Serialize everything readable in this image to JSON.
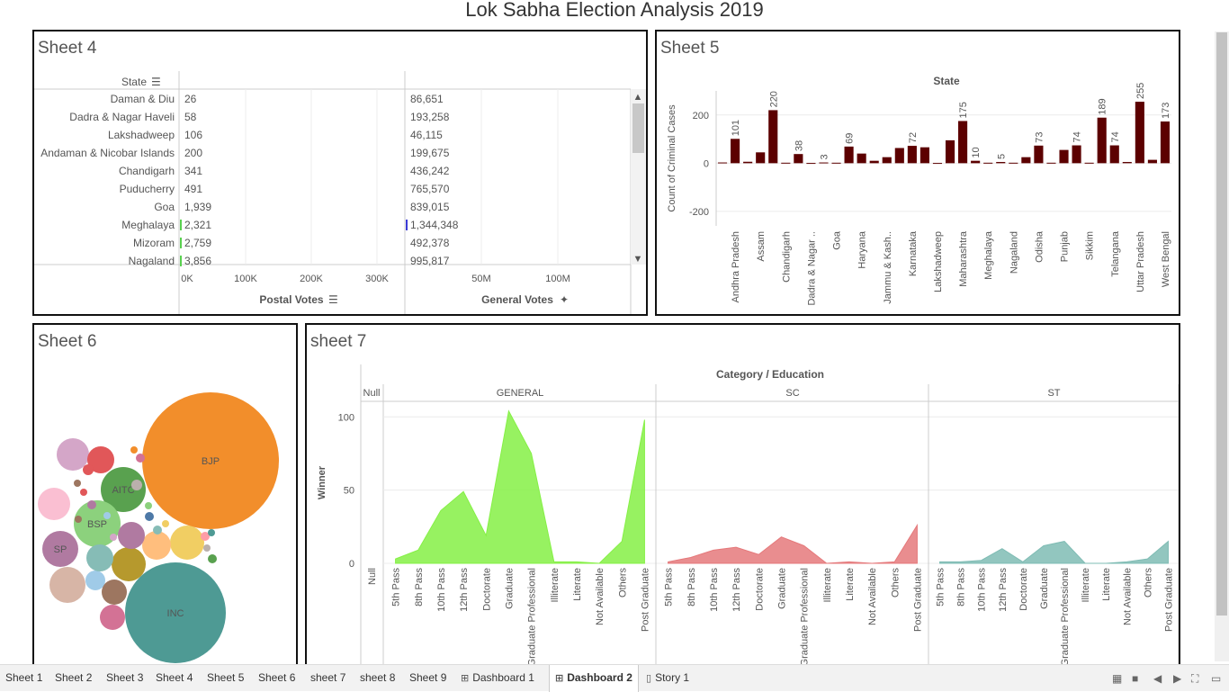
{
  "dashboard": {
    "title": "Lok Sabha Election Analysis 2019"
  },
  "sheet4": {
    "title": "Sheet 4",
    "state_header": "State",
    "postal_label": "Postal Votes",
    "general_label": "General Votes",
    "postal_ticks": [
      "0K",
      "100K",
      "200K",
      "300K"
    ],
    "general_ticks": [
      "50M",
      "100M"
    ],
    "rows": [
      {
        "state": "Daman & Diu",
        "postal": "26",
        "general": "86,651"
      },
      {
        "state": "Dadra & Nagar Haveli",
        "postal": "58",
        "general": "193,258"
      },
      {
        "state": "Lakshadweep",
        "postal": "106",
        "general": "46,115"
      },
      {
        "state": "Andaman & Nicobar Islands",
        "postal": "200",
        "general": "199,675"
      },
      {
        "state": "Chandigarh",
        "postal": "341",
        "general": "436,242"
      },
      {
        "state": "Puducherry",
        "postal": "491",
        "general": "765,570"
      },
      {
        "state": "Goa",
        "postal": "1,939",
        "general": "839,015"
      },
      {
        "state": "Meghalaya",
        "postal": "2,321",
        "general": "1,344,348"
      },
      {
        "state": "Mizoram",
        "postal": "2,759",
        "general": "492,378"
      },
      {
        "state": "Nagaland",
        "postal": "3,856",
        "general": "995,817"
      }
    ]
  },
  "sheet5": {
    "title": "Sheet 5",
    "chart_data": {
      "type": "bar",
      "title": "State",
      "ylabel": "Count of Criminal Cases",
      "ylim": [
        -260,
        300
      ],
      "yticks": [
        "200",
        "0",
        "-200"
      ],
      "bar_color": "#5c0000",
      "values": [
        3,
        101,
        6,
        45,
        220,
        2,
        38,
        1,
        3,
        2,
        69,
        40,
        10,
        25,
        63,
        72,
        66,
        1,
        95,
        175,
        10,
        2,
        5,
        2,
        25,
        73,
        2,
        55,
        74,
        2,
        189,
        74,
        5,
        255,
        14,
        173
      ],
      "bar_labels": [
        {
          "index": 1,
          "label": "101"
        },
        {
          "index": 4,
          "label": "220"
        },
        {
          "index": 6,
          "label": "38"
        },
        {
          "index": 8,
          "label": "3"
        },
        {
          "index": 10,
          "label": "69"
        },
        {
          "index": 15,
          "label": "72"
        },
        {
          "index": 19,
          "label": "175"
        },
        {
          "index": 20,
          "label": "10"
        },
        {
          "index": 22,
          "label": "5"
        },
        {
          "index": 25,
          "label": "73"
        },
        {
          "index": 28,
          "label": "74"
        },
        {
          "index": 30,
          "label": "189"
        },
        {
          "index": 31,
          "label": "74"
        },
        {
          "index": 33,
          "label": "255"
        },
        {
          "index": 35,
          "label": "173"
        }
      ],
      "xtick_labels": [
        {
          "index": 1,
          "label": "Andhra Pradesh"
        },
        {
          "index": 3,
          "label": "Assam"
        },
        {
          "index": 5,
          "label": "Chandigarh"
        },
        {
          "index": 7,
          "label": "Dadra & Nagar .."
        },
        {
          "index": 9,
          "label": "Goa"
        },
        {
          "index": 11,
          "label": "Haryana"
        },
        {
          "index": 13,
          "label": "Jammu & Kash.."
        },
        {
          "index": 15,
          "label": "Karnataka"
        },
        {
          "index": 17,
          "label": "Lakshadweep"
        },
        {
          "index": 19,
          "label": "Maharashtra"
        },
        {
          "index": 21,
          "label": "Meghalaya"
        },
        {
          "index": 23,
          "label": "Nagaland"
        },
        {
          "index": 25,
          "label": "Odisha"
        },
        {
          "index": 27,
          "label": "Punjab"
        },
        {
          "index": 29,
          "label": "Sikkim"
        },
        {
          "index": 31,
          "label": "Telangana"
        },
        {
          "index": 33,
          "label": "Uttar Pradesh"
        },
        {
          "index": 35,
          "label": "West Bengal"
        }
      ]
    }
  },
  "sheet6": {
    "title": "Sheet 6",
    "chart_data": {
      "type": "bubble",
      "bubbles": [
        {
          "label": "BJP",
          "value": 303,
          "color": "#f28e2b"
        },
        {
          "label": "INC",
          "value": 52,
          "color": "#4e9a94"
        },
        {
          "label": "AITC",
          "value": 22,
          "color": "#59a14f"
        },
        {
          "label": "BSP",
          "value": 10,
          "color": "#8cd17d"
        },
        {
          "label": "SP",
          "value": 5,
          "color": "#b07aa1"
        },
        {
          "label": "",
          "value": 24,
          "color": "#d4a6c8"
        },
        {
          "label": "",
          "value": 23,
          "color": "#f1ce63"
        },
        {
          "label": "",
          "value": 22,
          "color": "#d7b5a6"
        },
        {
          "label": "",
          "value": 18,
          "color": "#fabfd2"
        },
        {
          "label": "",
          "value": 16,
          "color": "#b6992d"
        },
        {
          "label": "",
          "value": 12,
          "color": "#a0cbe8"
        },
        {
          "label": "",
          "value": 10,
          "color": "#e15759"
        },
        {
          "label": "",
          "value": 9,
          "color": "#ffbe7d"
        },
        {
          "label": "",
          "value": 8,
          "color": "#9d7660"
        },
        {
          "label": "",
          "value": 7,
          "color": "#86bcb6"
        },
        {
          "label": "",
          "value": 6,
          "color": "#b07aa1"
        },
        {
          "label": "",
          "value": 5,
          "color": "#d37295"
        }
      ]
    }
  },
  "sheet7": {
    "title": "sheet 7",
    "chart_data": {
      "type": "area",
      "title": "Category / Education",
      "ylabel": "Winner",
      "ylim": [
        0,
        110
      ],
      "yticks": [
        "100",
        "50",
        "0"
      ],
      "null_label": "Null",
      "education_levels": [
        "5th Pass",
        "8th Pass",
        "10th Pass",
        "12th Pass",
        "Doctorate",
        "Graduate",
        "Graduate Professional",
        "Illiterate",
        "Literate",
        "Not Available",
        "Others",
        "Post Graduate"
      ],
      "series": [
        {
          "name": "GENERAL",
          "color": "#85f045",
          "values": [
            3,
            9,
            36,
            49,
            19,
            104,
            75,
            1,
            1,
            0,
            15,
            98
          ]
        },
        {
          "name": "SC",
          "color": "#e5797b",
          "values": [
            1,
            4,
            9,
            11,
            6,
            18,
            12,
            0,
            1,
            0,
            1,
            26
          ]
        },
        {
          "name": "ST",
          "color": "#7fbcb4",
          "values": [
            1,
            1,
            2,
            10,
            1,
            12,
            15,
            0,
            0,
            1,
            3,
            15
          ]
        }
      ]
    }
  },
  "tabs": [
    {
      "label": "Sheet 1",
      "icon": ""
    },
    {
      "label": "Sheet 2",
      "icon": ""
    },
    {
      "label": "Sheet 3",
      "icon": ""
    },
    {
      "label": "Sheet 4",
      "icon": ""
    },
    {
      "label": "Sheet 5",
      "icon": ""
    },
    {
      "label": "Sheet 6",
      "icon": ""
    },
    {
      "label": "sheet 7",
      "icon": ""
    },
    {
      "label": "sheet 8",
      "icon": ""
    },
    {
      "label": "Sheet 9",
      "icon": ""
    },
    {
      "label": "Dashboard 1",
      "icon": "dashboard-icon"
    },
    {
      "label": "Dashboard 2",
      "icon": "dashboard-icon",
      "active": true
    },
    {
      "label": "Story 1",
      "icon": "story-icon"
    }
  ]
}
